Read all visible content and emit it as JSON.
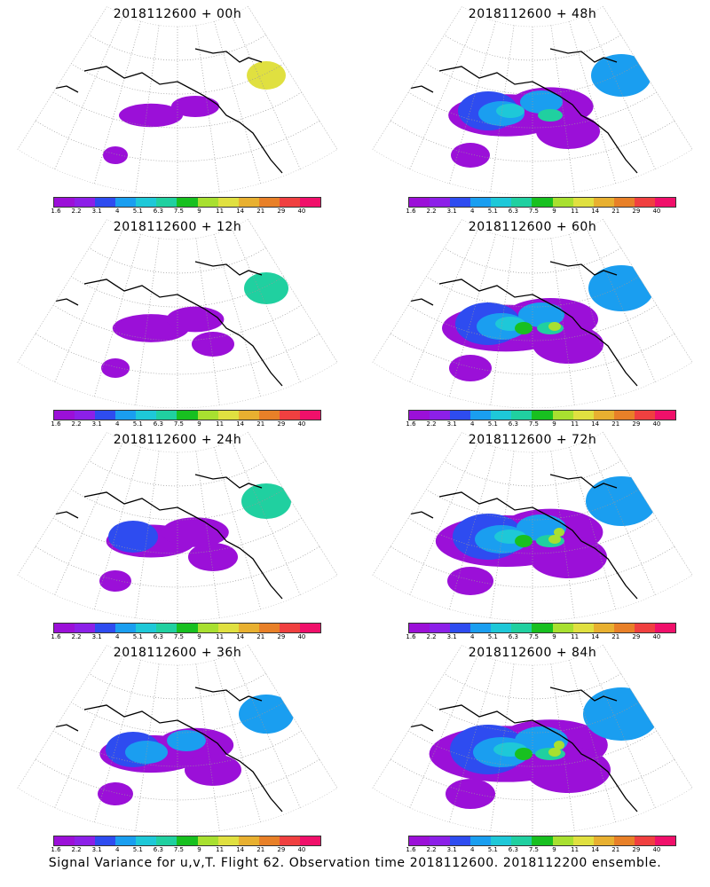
{
  "panels": [
    {
      "title": "2018112600 + 00h",
      "level": 0
    },
    {
      "title": "2018112600 + 48h",
      "level": 4
    },
    {
      "title": "2018112600 + 12h",
      "level": 1
    },
    {
      "title": "2018112600 + 60h",
      "level": 5
    },
    {
      "title": "2018112600 + 24h",
      "level": 2
    },
    {
      "title": "2018112600 + 72h",
      "level": 6
    },
    {
      "title": "2018112600 + 36h",
      "level": 3
    },
    {
      "title": "2018112600 + 84h",
      "level": 7
    }
  ],
  "colorbar": {
    "labels": [
      "1.6",
      "2.2",
      "3.1",
      "4",
      "5.1",
      "6.3",
      "7.5",
      "9",
      "11",
      "14",
      "21",
      "29",
      "40"
    ],
    "colors": [
      "#9b10d8",
      "#8c20e8",
      "#2e4cf0",
      "#1a9ef0",
      "#1ec8d8",
      "#20d0a0",
      "#18c020",
      "#a8e030",
      "#e0e040",
      "#e8b030",
      "#e88028",
      "#f04040",
      "#f0106a"
    ]
  },
  "footer": "Signal Variance for u,v,T. Flight 62. Observation time 2018112600. 2018112200 ensemble."
}
